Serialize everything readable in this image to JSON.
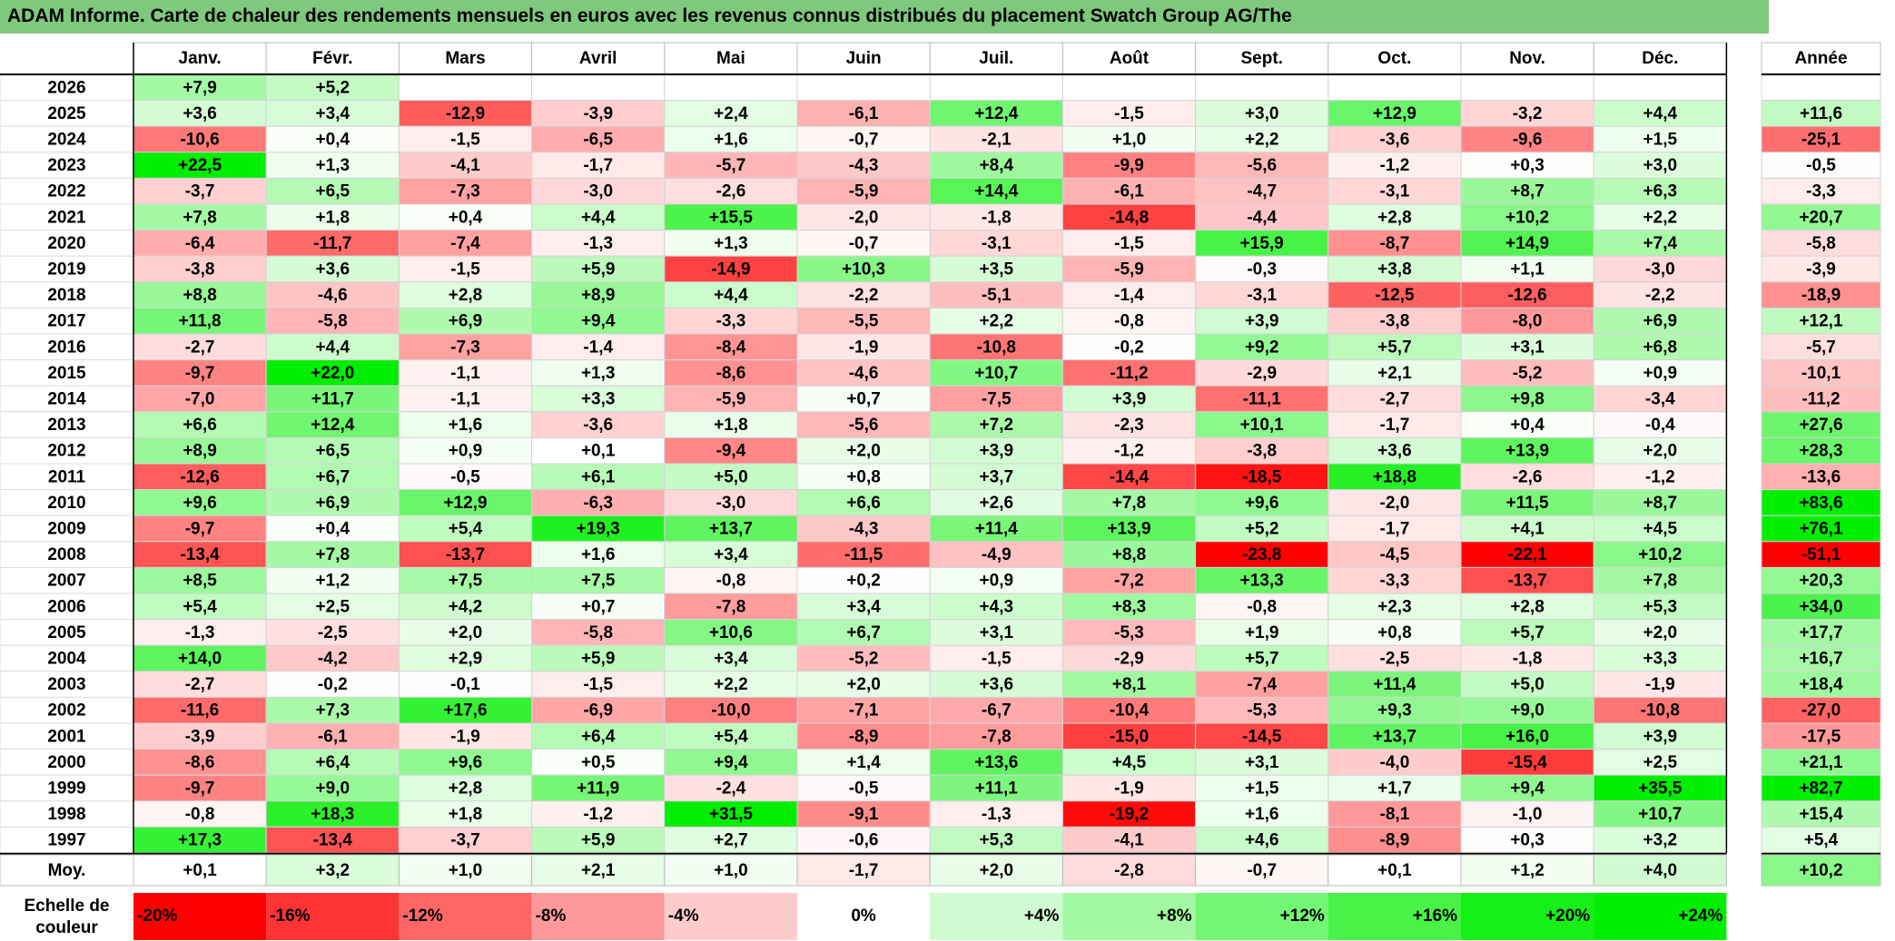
{
  "title": "ADAM Informe. Carte de chaleur des rendements mensuels en euros avec les revenus connus distribués du placement Swatch Group AG/The",
  "chart_data": {
    "type": "heatmap",
    "columns": [
      "Janv.",
      "Févr.",
      "Mars",
      "Avril",
      "Mai",
      "Juin",
      "Juil.",
      "Août",
      "Sept.",
      "Oct.",
      "Nov.",
      "Déc."
    ],
    "annual_label": "Année",
    "rows": [
      {
        "year": "2026",
        "values": [
          "+7,9",
          "+5,2",
          null,
          null,
          null,
          null,
          null,
          null,
          null,
          null,
          null,
          null
        ],
        "annual": null
      },
      {
        "year": "2025",
        "values": [
          "+3,6",
          "+3,4",
          "-12,9",
          "-3,9",
          "+2,4",
          "-6,1",
          "+12,4",
          "-1,5",
          "+3,0",
          "+12,9",
          "-3,2",
          "+4,4"
        ],
        "annual": "+11,6"
      },
      {
        "year": "2024",
        "values": [
          "-10,6",
          "+0,4",
          "-1,5",
          "-6,5",
          "+1,6",
          "-0,7",
          "-2,1",
          "+1,0",
          "+2,2",
          "-3,6",
          "-9,6",
          "+1,5"
        ],
        "annual": "-25,1"
      },
      {
        "year": "2023",
        "values": [
          "+22,5",
          "+1,3",
          "-4,1",
          "-1,7",
          "-5,7",
          "-4,3",
          "+8,4",
          "-9,9",
          "-5,6",
          "-1,2",
          "+0,3",
          "+3,0"
        ],
        "annual": "-0,5"
      },
      {
        "year": "2022",
        "values": [
          "-3,7",
          "+6,5",
          "-7,3",
          "-3,0",
          "-2,6",
          "-5,9",
          "+14,4",
          "-6,1",
          "-4,7",
          "-3,1",
          "+8,7",
          "+6,3"
        ],
        "annual": "-3,3"
      },
      {
        "year": "2021",
        "values": [
          "+7,8",
          "+1,8",
          "+0,4",
          "+4,4",
          "+15,5",
          "-2,0",
          "-1,8",
          "-14,8",
          "-4,4",
          "+2,8",
          "+10,2",
          "+2,2"
        ],
        "annual": "+20,7"
      },
      {
        "year": "2020",
        "values": [
          "-6,4",
          "-11,7",
          "-7,4",
          "-1,3",
          "+1,3",
          "-0,7",
          "-3,1",
          "-1,5",
          "+15,9",
          "-8,7",
          "+14,9",
          "+7,4"
        ],
        "annual": "-5,8"
      },
      {
        "year": "2019",
        "values": [
          "-3,8",
          "+3,6",
          "-1,5",
          "+5,9",
          "-14,9",
          "+10,3",
          "+3,5",
          "-5,9",
          "-0,3",
          "+3,8",
          "+1,1",
          "-3,0"
        ],
        "annual": "-3,9"
      },
      {
        "year": "2018",
        "values": [
          "+8,8",
          "-4,6",
          "+2,8",
          "+8,9",
          "+4,4",
          "-2,2",
          "-5,1",
          "-1,4",
          "-3,1",
          "-12,5",
          "-12,6",
          "-2,2"
        ],
        "annual": "-18,9"
      },
      {
        "year": "2017",
        "values": [
          "+11,8",
          "-5,8",
          "+6,9",
          "+9,4",
          "-3,3",
          "-5,5",
          "+2,2",
          "-0,8",
          "+3,9",
          "-3,8",
          "-8,0",
          "+6,9"
        ],
        "annual": "+12,1"
      },
      {
        "year": "2016",
        "values": [
          "-2,7",
          "+4,4",
          "-7,3",
          "-1,4",
          "-8,4",
          "-1,9",
          "-10,8",
          "-0,2",
          "+9,2",
          "+5,7",
          "+3,1",
          "+6,8"
        ],
        "annual": "-5,7"
      },
      {
        "year": "2015",
        "values": [
          "-9,7",
          "+22,0",
          "-1,1",
          "+1,3",
          "-8,6",
          "-4,6",
          "+10,7",
          "-11,2",
          "-2,9",
          "+2,1",
          "-5,2",
          "+0,9"
        ],
        "annual": "-10,1"
      },
      {
        "year": "2014",
        "values": [
          "-7,0",
          "+11,7",
          "-1,1",
          "+3,3",
          "-5,9",
          "+0,7",
          "-7,5",
          "+3,9",
          "-11,1",
          "-2,7",
          "+9,8",
          "-3,4"
        ],
        "annual": "-11,2"
      },
      {
        "year": "2013",
        "values": [
          "+6,6",
          "+12,4",
          "+1,6",
          "-3,6",
          "+1,8",
          "-5,6",
          "+7,2",
          "-2,3",
          "+10,1",
          "-1,7",
          "+0,4",
          "-0,4"
        ],
        "annual": "+27,6"
      },
      {
        "year": "2012",
        "values": [
          "+8,9",
          "+6,5",
          "+0,9",
          "+0,1",
          "-9,4",
          "+2,0",
          "+3,9",
          "-1,2",
          "-3,8",
          "+3,6",
          "+13,9",
          "+2,0"
        ],
        "annual": "+28,3"
      },
      {
        "year": "2011",
        "values": [
          "-12,6",
          "+6,7",
          "-0,5",
          "+6,1",
          "+5,0",
          "+0,8",
          "+3,7",
          "-14,4",
          "-18,5",
          "+18,8",
          "-2,6",
          "-1,2"
        ],
        "annual": "-13,6"
      },
      {
        "year": "2010",
        "values": [
          "+9,6",
          "+6,9",
          "+12,9",
          "-6,3",
          "-3,0",
          "+6,6",
          "+2,6",
          "+7,8",
          "+9,6",
          "-2,0",
          "+11,5",
          "+8,7"
        ],
        "annual": "+83,6"
      },
      {
        "year": "2009",
        "values": [
          "-9,7",
          "+0,4",
          "+5,4",
          "+19,3",
          "+13,7",
          "-4,3",
          "+11,4",
          "+13,9",
          "+5,2",
          "-1,7",
          "+4,1",
          "+4,5"
        ],
        "annual": "+76,1"
      },
      {
        "year": "2008",
        "values": [
          "-13,4",
          "+7,8",
          "-13,7",
          "+1,6",
          "+3,4",
          "-11,5",
          "-4,9",
          "+8,8",
          "-23,8",
          "-4,5",
          "-22,1",
          "+10,2"
        ],
        "annual": "-51,1"
      },
      {
        "year": "2007",
        "values": [
          "+8,5",
          "+1,2",
          "+7,5",
          "+7,5",
          "-0,8",
          "+0,2",
          "+0,9",
          "-7,2",
          "+13,3",
          "-3,3",
          "-13,7",
          "+7,8"
        ],
        "annual": "+20,3"
      },
      {
        "year": "2006",
        "values": [
          "+5,4",
          "+2,5",
          "+4,2",
          "+0,7",
          "-7,8",
          "+3,4",
          "+4,3",
          "+8,3",
          "-0,8",
          "+2,3",
          "+2,8",
          "+5,3"
        ],
        "annual": "+34,0"
      },
      {
        "year": "2005",
        "values": [
          "-1,3",
          "-2,5",
          "+2,0",
          "-5,8",
          "+10,6",
          "+6,7",
          "+3,1",
          "-5,3",
          "+1,9",
          "+0,8",
          "+5,7",
          "+2,0"
        ],
        "annual": "+17,7"
      },
      {
        "year": "2004",
        "values": [
          "+14,0",
          "-4,2",
          "+2,9",
          "+5,9",
          "+3,4",
          "-5,2",
          "-1,5",
          "-2,9",
          "+5,7",
          "-2,5",
          "-1,8",
          "+3,3"
        ],
        "annual": "+16,7"
      },
      {
        "year": "2003",
        "values": [
          "-2,7",
          "-0,2",
          "-0,1",
          "-1,5",
          "+2,2",
          "+2,0",
          "+3,6",
          "+8,1",
          "-7,4",
          "+11,4",
          "+5,0",
          "-1,9"
        ],
        "annual": "+18,4"
      },
      {
        "year": "2002",
        "values": [
          "-11,6",
          "+7,3",
          "+17,6",
          "-6,9",
          "-10,0",
          "-7,1",
          "-6,7",
          "-10,4",
          "-5,3",
          "+9,3",
          "+9,0",
          "-10,8"
        ],
        "annual": "-27,0"
      },
      {
        "year": "2001",
        "values": [
          "-3,9",
          "-6,1",
          "-1,9",
          "+6,4",
          "+5,4",
          "-8,9",
          "-7,8",
          "-15,0",
          "-14,5",
          "+13,7",
          "+16,0",
          "+3,9"
        ],
        "annual": "-17,5"
      },
      {
        "year": "2000",
        "values": [
          "-8,6",
          "+6,4",
          "+9,6",
          "+0,5",
          "+9,4",
          "+1,4",
          "+13,6",
          "+4,5",
          "+3,1",
          "-4,0",
          "-15,4",
          "+2,5"
        ],
        "annual": "+21,1"
      },
      {
        "year": "1999",
        "values": [
          "-9,7",
          "+9,0",
          "+2,8",
          "+11,9",
          "-2,4",
          "-0,5",
          "+11,1",
          "-1,9",
          "+1,5",
          "+1,7",
          "+9,4",
          "+35,5"
        ],
        "annual": "+82,7"
      },
      {
        "year": "1998",
        "values": [
          "-0,8",
          "+18,3",
          "+1,8",
          "-1,2",
          "+31,5",
          "-9,1",
          "-1,3",
          "-19,2",
          "+1,6",
          "-8,1",
          "-1,0",
          "+10,7"
        ],
        "annual": "+15,4"
      },
      {
        "year": "1997",
        "values": [
          "+17,3",
          "-13,4",
          "-3,7",
          "+5,9",
          "+2,7",
          "-0,6",
          "+5,3",
          "-4,1",
          "+4,6",
          "-8,9",
          "+0,3",
          "+3,2"
        ],
        "annual": "+5,4"
      }
    ],
    "average": {
      "label": "Moy.",
      "values": [
        "+0,1",
        "+3,2",
        "+1,0",
        "+2,1",
        "+1,0",
        "-1,7",
        "+2,0",
        "-2,8",
        "-0,7",
        "+0,1",
        "+1,2",
        "+4,0"
      ],
      "annual": "+10,2"
    },
    "scale": {
      "label_line1": "Echelle de",
      "label_line2": "couleur",
      "stops": [
        "-20%",
        "-16%",
        "-12%",
        "-8%",
        "-4%",
        "0%",
        "+4%",
        "+8%",
        "+12%",
        "+16%",
        "+20%",
        "+24%"
      ]
    },
    "colors": {
      "negative_max": "#ff0000",
      "neutral": "#ffffff",
      "positive_max": "#00ee00",
      "title_bg": "#7fc97f"
    }
  }
}
